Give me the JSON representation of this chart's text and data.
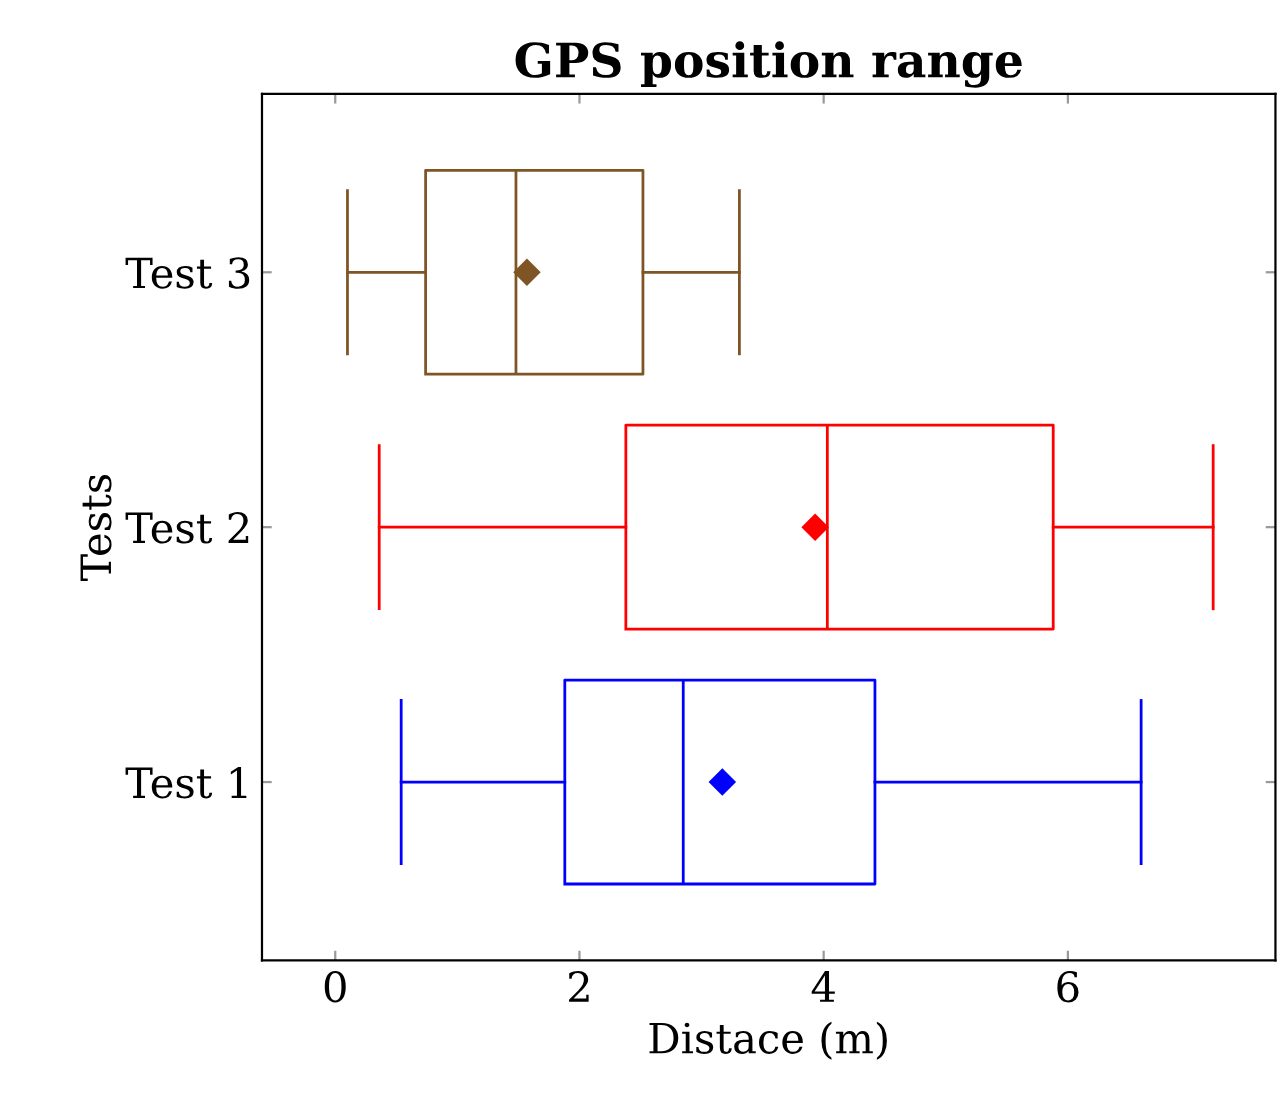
{
  "chart_data": {
    "type": "box",
    "orientation": "horizontal",
    "title": "GPS position range",
    "xlabel": "Distace (m)",
    "ylabel": "Tests",
    "categories": [
      "Test 3",
      "Test 2",
      "Test 1"
    ],
    "colors": [
      "#7f5526",
      "#ff0000",
      "#0000ff"
    ],
    "boxes": [
      {
        "low": 0.1,
        "q1": 0.74,
        "median": 1.48,
        "q3": 2.52,
        "high": 3.31,
        "mean": 1.57
      },
      {
        "low": 0.36,
        "q1": 2.38,
        "median": 4.03,
        "q3": 5.88,
        "high": 7.19,
        "mean": 3.93
      },
      {
        "low": 0.54,
        "q1": 1.88,
        "median": 2.85,
        "q3": 4.42,
        "high": 6.6,
        "mean": 3.17
      }
    ],
    "xlim": [
      -0.6,
      7.7
    ],
    "xticks": [
      0,
      2,
      4,
      6
    ],
    "grid": false,
    "marker": "diamond"
  }
}
